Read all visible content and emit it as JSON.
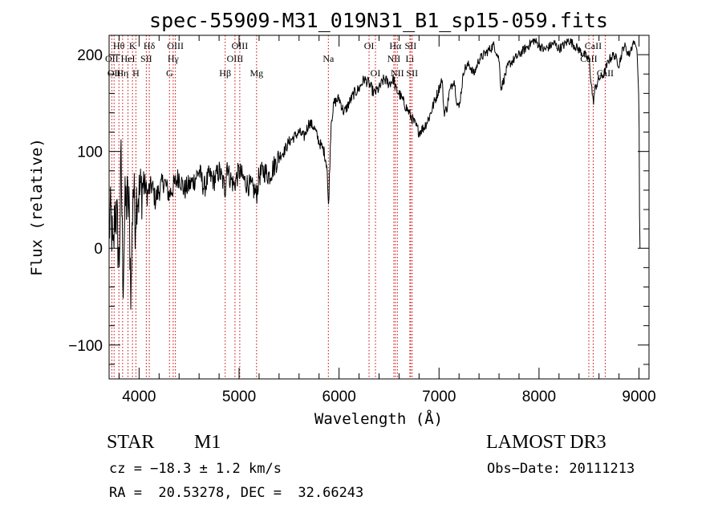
{
  "chart_data": {
    "type": "line",
    "title": "spec-55909-M31_019N31_B1_sp15-059.fits",
    "xlabel": "Wavelength (Å)",
    "ylabel": "Flux (relative)",
    "xlim": [
      3700,
      9100
    ],
    "ylim": [
      -135,
      220
    ],
    "xticks": [
      4000,
      5000,
      6000,
      7000,
      8000,
      9000
    ],
    "yticks": [
      -100,
      0,
      100,
      200
    ],
    "ytick_labels": [
      "−100",
      "0",
      "100",
      "200"
    ],
    "grid": false,
    "series": [
      {
        "name": "spectrum",
        "x": [
          3700,
          3720,
          3740,
          3760,
          3780,
          3800,
          3820,
          3840,
          3860,
          3880,
          3900,
          3920,
          3940,
          3960,
          3980,
          4000,
          4020,
          4050,
          4080,
          4100,
          4130,
          4160,
          4200,
          4250,
          4300,
          4350,
          4400,
          4450,
          4500,
          4550,
          4600,
          4650,
          4700,
          4750,
          4800,
          4850,
          4861,
          4880,
          4900,
          4950,
          5000,
          5050,
          5100,
          5150,
          5175,
          5200,
          5250,
          5300,
          5350,
          5400,
          5450,
          5500,
          5550,
          5600,
          5650,
          5700,
          5750,
          5800,
          5850,
          5880,
          5893,
          5900,
          5920,
          5950,
          6000,
          6050,
          6100,
          6150,
          6200,
          6250,
          6300,
          6350,
          6400,
          6450,
          6500,
          6550,
          6563,
          6600,
          6650,
          6700,
          6750,
          6800,
          6850,
          6900,
          6950,
          7000,
          7030,
          7050,
          7080,
          7100,
          7150,
          7180,
          7200,
          7250,
          7300,
          7350,
          7400,
          7450,
          7500,
          7550,
          7600,
          7620,
          7650,
          7680,
          7700,
          7750,
          7800,
          7850,
          7900,
          7950,
          8000,
          8050,
          8100,
          8150,
          8200,
          8250,
          8300,
          8350,
          8400,
          8450,
          8500,
          8542,
          8560,
          8600,
          8650,
          8700,
          8750,
          8800,
          8850,
          8900,
          8950,
          8980,
          9000,
          9005,
          9010
        ],
        "values": [
          20,
          35,
          -15,
          45,
          25,
          -20,
          90,
          -35,
          45,
          50,
          40,
          -50,
          75,
          30,
          60,
          55,
          60,
          70,
          55,
          60,
          65,
          50,
          60,
          70,
          55,
          65,
          75,
          60,
          65,
          70,
          80,
          62,
          75,
          70,
          80,
          65,
          60,
          90,
          75,
          65,
          80,
          70,
          65,
          60,
          55,
          75,
          80,
          75,
          85,
          95,
          100,
          110,
          115,
          120,
          115,
          130,
          125,
          110,
          100,
          85,
          40,
          60,
          130,
          150,
          155,
          140,
          150,
          160,
          165,
          175,
          170,
          160,
          165,
          175,
          170,
          175,
          165,
          160,
          150,
          140,
          130,
          120,
          125,
          135,
          150,
          165,
          175,
          140,
          145,
          160,
          175,
          150,
          145,
          185,
          190,
          180,
          195,
          200,
          205,
          210,
          195,
          165,
          175,
          185,
          190,
          195,
          200,
          205,
          210,
          215,
          210,
          205,
          208,
          212,
          206,
          210,
          215,
          210,
          205,
          200,
          195,
          150,
          165,
          175,
          180,
          195,
          200,
          190,
          210,
          200,
          215,
          205,
          150,
          40,
          0
        ],
        "samples": 1200
      }
    ],
    "line_markers": [
      {
        "wl": 3727,
        "labels": [
          "OII"
        ],
        "row": 2
      },
      {
        "wl": 3750,
        "labels": [
          "OII"
        ],
        "row": 3
      },
      {
        "wl": 3798,
        "labels": [
          "Hθ"
        ],
        "row": 1
      },
      {
        "wl": 3835,
        "labels": [
          "Hη"
        ],
        "row": 3
      },
      {
        "wl": 3889,
        "labels": [
          "HeI"
        ],
        "row": 2
      },
      {
        "wl": 3934,
        "labels": [
          "K"
        ],
        "row": 1
      },
      {
        "wl": 3968,
        "labels": [
          "H"
        ],
        "row": 3
      },
      {
        "wl": 4072,
        "labels": [
          "SII"
        ],
        "row": 2
      },
      {
        "wl": 4102,
        "labels": [
          "Hδ"
        ],
        "row": 1
      },
      {
        "wl": 4304,
        "labels": [
          "G"
        ],
        "row": 3
      },
      {
        "wl": 4341,
        "labels": [
          "Hγ"
        ],
        "row": 2
      },
      {
        "wl": 4363,
        "labels": [
          "OIII"
        ],
        "row": 1
      },
      {
        "wl": 4861,
        "labels": [
          "Hβ"
        ],
        "row": 3
      },
      {
        "wl": 4959,
        "labels": [
          "OIII"
        ],
        "row": 2
      },
      {
        "wl": 5007,
        "labels": [
          "OIII"
        ],
        "row": 1
      },
      {
        "wl": 5175,
        "labels": [
          "Mg"
        ],
        "row": 3
      },
      {
        "wl": 5893,
        "labels": [
          "Na"
        ],
        "row": 2
      },
      {
        "wl": 6300,
        "labels": [
          "OI"
        ],
        "row": 1
      },
      {
        "wl": 6364,
        "labels": [
          "OI"
        ],
        "row": 3
      },
      {
        "wl": 6548,
        "labels": [
          "NII"
        ],
        "row": 2
      },
      {
        "wl": 6563,
        "labels": [
          "Hα"
        ],
        "row": 1
      },
      {
        "wl": 6583,
        "labels": [
          "NII"
        ],
        "row": 3
      },
      {
        "wl": 6708,
        "labels": [
          "Li"
        ],
        "row": 2
      },
      {
        "wl": 6716,
        "labels": [
          "SII"
        ],
        "row": 1
      },
      {
        "wl": 6731,
        "labels": [
          "SII"
        ],
        "row": 3
      },
      {
        "wl": 8498,
        "labels": [
          "CaII"
        ],
        "row": 2
      },
      {
        "wl": 8542,
        "labels": [
          "CaII"
        ],
        "row": 1
      },
      {
        "wl": 8662,
        "labels": [
          "CaII"
        ],
        "row": 3
      }
    ]
  },
  "info": {
    "object_class": "STAR",
    "subclass": "M1",
    "survey": "LAMOST DR3",
    "cz": "cz = −18.3 ± 1.2 km/s",
    "obs_date": "Obs−Date: 20111213",
    "coords": "RA =  20.53278, DEC =  32.66243"
  },
  "colors": {
    "spectrum": "#000000",
    "marker": "#cc0000",
    "axis": "#000000"
  }
}
